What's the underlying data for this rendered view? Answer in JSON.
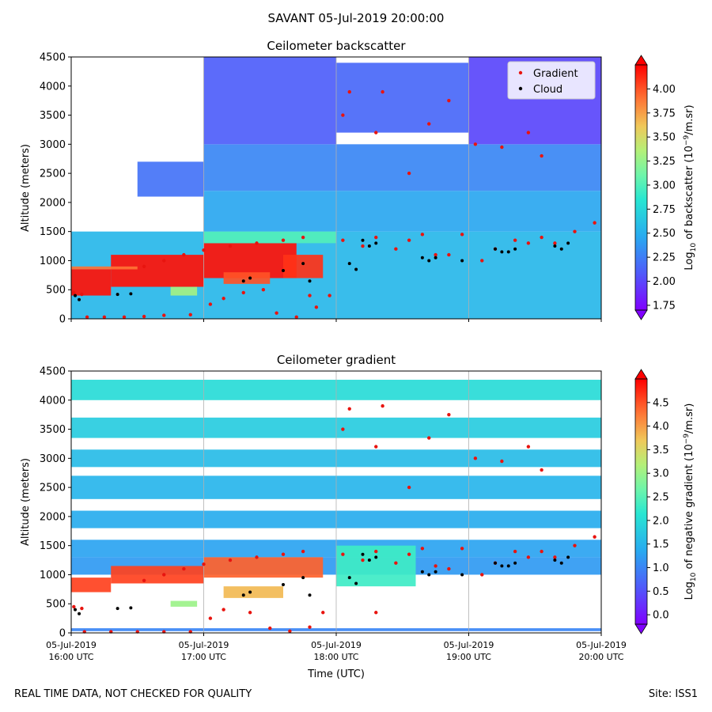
{
  "suptitle": "SAVANT 05-Jul-2019 20:00:00",
  "footer": {
    "left": "REAL TIME DATA, NOT CHECKED FOR QUALITY",
    "right": "Site: ISS1"
  },
  "chart_data": [
    {
      "type": "heatmap",
      "title": "Ceilometer backscatter",
      "ylabel": "Altitude (meters)",
      "xlabel": "",
      "ylim": [
        0,
        4500
      ],
      "xlim_hours_utc": [
        16,
        20
      ],
      "yticks": [
        "0",
        "500",
        "1000",
        "1500",
        "2000",
        "2500",
        "3000",
        "3500",
        "4000",
        "4500"
      ],
      "xticks": [
        {
          "line1": "05-Jul-2019",
          "line2": "16:00 UTC"
        },
        {
          "line1": "05-Jul-2019",
          "line2": "17:00 UTC"
        },
        {
          "line1": "05-Jul-2019",
          "line2": "18:00 UTC"
        },
        {
          "line1": "05-Jul-2019",
          "line2": "19:00 UTC"
        },
        {
          "line1": "05-Jul-2019",
          "line2": "20:00 UTC"
        }
      ],
      "show_xtick_labels": false,
      "colorbar": {
        "label_main": "Log",
        "label_sub": "10",
        "label_mid": " of backscatter (10",
        "label_sup": "−9",
        "label_end": "/m.sr)",
        "range": [
          1.7,
          4.25
        ],
        "ticks": [
          "1.75",
          "2.00",
          "2.25",
          "2.50",
          "2.75",
          "3.00",
          "3.25",
          "3.50",
          "3.75",
          "4.00"
        ]
      },
      "legend": {
        "position": "top-right",
        "entries": [
          {
            "label": "Gradient",
            "color": "#e8140f"
          },
          {
            "label": "Cloud",
            "color": "#000000"
          }
        ]
      },
      "layers": [
        {
          "t0": 16.0,
          "t1": 20.0,
          "alt0": 0,
          "alt1": 1500,
          "value": 2.55
        },
        {
          "t0": 17.0,
          "t1": 20.0,
          "alt0": 1500,
          "alt1": 2200,
          "value": 2.45
        },
        {
          "t0": 17.0,
          "t1": 20.0,
          "alt0": 2200,
          "alt1": 3000,
          "value": 2.3
        },
        {
          "t0": 17.0,
          "t1": 18.0,
          "alt0": 3000,
          "alt1": 4500,
          "value": 2.1
        },
        {
          "t0": 16.5,
          "t1": 17.0,
          "alt0": 2100,
          "alt1": 2700,
          "value": 2.2
        },
        {
          "t0": 18.0,
          "t1": 19.0,
          "alt0": 3200,
          "alt1": 4400,
          "value": 2.15
        },
        {
          "t0": 19.0,
          "t1": 20.0,
          "alt0": 3000,
          "alt1": 4500,
          "value": 2.0
        },
        {
          "t0": 16.0,
          "t1": 16.3,
          "alt0": 400,
          "alt1": 850,
          "value": 4.2
        },
        {
          "t0": 16.3,
          "t1": 17.0,
          "alt0": 550,
          "alt1": 1100,
          "value": 4.2
        },
        {
          "t0": 17.0,
          "t1": 17.7,
          "alt0": 700,
          "alt1": 1300,
          "value": 4.2
        },
        {
          "t0": 16.0,
          "t1": 16.5,
          "alt0": 850,
          "alt1": 900,
          "value": 3.9
        },
        {
          "t0": 17.15,
          "t1": 17.5,
          "alt0": 600,
          "alt1": 800,
          "value": 4.0
        },
        {
          "t0": 17.6,
          "t1": 17.9,
          "alt0": 700,
          "alt1": 1100,
          "value": 4.1
        },
        {
          "t0": 17.0,
          "t1": 18.0,
          "alt0": 1300,
          "alt1": 1500,
          "value": 3.0
        },
        {
          "t0": 16.75,
          "t1": 16.95,
          "alt0": 400,
          "alt1": 550,
          "value": 3.3
        }
      ],
      "gradient_points": [
        {
          "t": 16.02,
          "alt": 450
        },
        {
          "t": 16.08,
          "alt": 420
        },
        {
          "t": 16.12,
          "alt": 30
        },
        {
          "t": 16.25,
          "alt": 30
        },
        {
          "t": 16.4,
          "alt": 30
        },
        {
          "t": 16.55,
          "alt": 40
        },
        {
          "t": 16.7,
          "alt": 60
        },
        {
          "t": 16.9,
          "alt": 70
        },
        {
          "t": 17.05,
          "alt": 250
        },
        {
          "t": 17.15,
          "alt": 350
        },
        {
          "t": 17.3,
          "alt": 450
        },
        {
          "t": 17.45,
          "alt": 500
        },
        {
          "t": 17.55,
          "alt": 100
        },
        {
          "t": 17.7,
          "alt": 30
        },
        {
          "t": 17.8,
          "alt": 400
        },
        {
          "t": 17.85,
          "alt": 200
        },
        {
          "t": 17.95,
          "alt": 400
        },
        {
          "t": 18.05,
          "alt": 1350
        },
        {
          "t": 18.2,
          "alt": 1250
        },
        {
          "t": 18.3,
          "alt": 1400
        },
        {
          "t": 18.45,
          "alt": 1200
        },
        {
          "t": 18.55,
          "alt": 1350
        },
        {
          "t": 18.65,
          "alt": 1450
        },
        {
          "t": 18.75,
          "alt": 1100
        },
        {
          "t": 18.85,
          "alt": 1100
        },
        {
          "t": 18.95,
          "alt": 1450
        },
        {
          "t": 19.1,
          "alt": 1000
        },
        {
          "t": 19.2,
          "alt": 1200
        },
        {
          "t": 19.35,
          "alt": 1350
        },
        {
          "t": 19.45,
          "alt": 1300
        },
        {
          "t": 19.55,
          "alt": 1400
        },
        {
          "t": 19.65,
          "alt": 1300
        },
        {
          "t": 19.8,
          "alt": 1500
        },
        {
          "t": 19.95,
          "alt": 1650
        },
        {
          "t": 18.05,
          "alt": 3500
        },
        {
          "t": 18.1,
          "alt": 3900
        },
        {
          "t": 18.3,
          "alt": 3200
        },
        {
          "t": 18.35,
          "alt": 3900
        },
        {
          "t": 18.55,
          "alt": 2500
        },
        {
          "t": 18.7,
          "alt": 3350
        },
        {
          "t": 18.85,
          "alt": 3750
        },
        {
          "t": 19.05,
          "alt": 3000
        },
        {
          "t": 19.25,
          "alt": 2950
        },
        {
          "t": 19.45,
          "alt": 3200
        },
        {
          "t": 19.55,
          "alt": 2800
        },
        {
          "t": 16.55,
          "alt": 900
        },
        {
          "t": 16.7,
          "alt": 1000
        },
        {
          "t": 16.85,
          "alt": 1100
        },
        {
          "t": 17.0,
          "alt": 1180
        },
        {
          "t": 17.2,
          "alt": 1250
        },
        {
          "t": 17.4,
          "alt": 1300
        },
        {
          "t": 17.6,
          "alt": 1350
        },
        {
          "t": 17.75,
          "alt": 1400
        }
      ],
      "cloud_points": [
        {
          "t": 16.03,
          "alt": 400
        },
        {
          "t": 16.06,
          "alt": 330
        },
        {
          "t": 16.35,
          "alt": 420
        },
        {
          "t": 16.45,
          "alt": 430
        },
        {
          "t": 17.3,
          "alt": 650
        },
        {
          "t": 17.35,
          "alt": 700
        },
        {
          "t": 17.6,
          "alt": 830
        },
        {
          "t": 17.75,
          "alt": 950
        },
        {
          "t": 17.8,
          "alt": 650
        },
        {
          "t": 18.1,
          "alt": 950
        },
        {
          "t": 18.15,
          "alt": 850
        },
        {
          "t": 18.2,
          "alt": 1350
        },
        {
          "t": 18.25,
          "alt": 1250
        },
        {
          "t": 18.3,
          "alt": 1300
        },
        {
          "t": 18.65,
          "alt": 1050
        },
        {
          "t": 18.7,
          "alt": 1000
        },
        {
          "t": 18.75,
          "alt": 1050
        },
        {
          "t": 18.95,
          "alt": 1000
        },
        {
          "t": 19.2,
          "alt": 1200
        },
        {
          "t": 19.25,
          "alt": 1150
        },
        {
          "t": 19.3,
          "alt": 1150
        },
        {
          "t": 19.35,
          "alt": 1200
        },
        {
          "t": 19.65,
          "alt": 1250
        },
        {
          "t": 19.7,
          "alt": 1200
        },
        {
          "t": 19.75,
          "alt": 1300
        }
      ]
    },
    {
      "type": "heatmap",
      "title": "Ceilometer gradient",
      "ylabel": "Altitude (meters)",
      "xlabel": "Time (UTC)",
      "ylim": [
        0,
        4500
      ],
      "xlim_hours_utc": [
        16,
        20
      ],
      "yticks": [
        "0",
        "500",
        "1000",
        "1500",
        "2000",
        "2500",
        "3000",
        "3500",
        "4000",
        "4500"
      ],
      "xticks": [
        {
          "line1": "05-Jul-2019",
          "line2": "16:00 UTC"
        },
        {
          "line1": "05-Jul-2019",
          "line2": "17:00 UTC"
        },
        {
          "line1": "05-Jul-2019",
          "line2": "18:00 UTC"
        },
        {
          "line1": "05-Jul-2019",
          "line2": "19:00 UTC"
        },
        {
          "line1": "05-Jul-2019",
          "line2": "20:00 UTC"
        }
      ],
      "show_xtick_labels": true,
      "colorbar": {
        "label_main": "Log",
        "label_sub": "10",
        "label_mid": " of negative gradient (10",
        "label_sup": "−9",
        "label_end": "/m.sr)",
        "range": [
          -0.2,
          5.0
        ],
        "ticks": [
          "0.0",
          "0.5",
          "1.0",
          "1.5",
          "2.0",
          "2.5",
          "3.0",
          "3.5",
          "4.0",
          "4.5"
        ]
      },
      "layers": [
        {
          "t0": 16.0,
          "t1": 20.0,
          "alt0": 4000,
          "alt1": 4350,
          "value": 2.0
        },
        {
          "t0": 16.0,
          "t1": 20.0,
          "alt0": 3350,
          "alt1": 3700,
          "value": 1.8
        },
        {
          "t0": 16.0,
          "t1": 20.0,
          "alt0": 2850,
          "alt1": 3150,
          "value": 1.6
        },
        {
          "t0": 16.0,
          "t1": 20.0,
          "alt0": 2300,
          "alt1": 2700,
          "value": 1.5
        },
        {
          "t0": 16.0,
          "t1": 20.0,
          "alt0": 1800,
          "alt1": 2100,
          "value": 1.4
        },
        {
          "t0": 16.0,
          "t1": 20.0,
          "alt0": 1300,
          "alt1": 1600,
          "value": 1.3
        },
        {
          "t0": 16.0,
          "t1": 20.0,
          "alt0": 1000,
          "alt1": 1300,
          "value": 1.2
        },
        {
          "t0": 16.0,
          "t1": 20.0,
          "alt0": 30,
          "alt1": 80,
          "value": 1.0
        },
        {
          "t0": 16.0,
          "t1": 16.3,
          "alt0": 700,
          "alt1": 950,
          "value": 4.6
        },
        {
          "t0": 16.3,
          "t1": 17.0,
          "alt0": 850,
          "alt1": 1150,
          "value": 4.6
        },
        {
          "t0": 17.0,
          "t1": 17.9,
          "alt0": 950,
          "alt1": 1300,
          "value": 4.4
        },
        {
          "t0": 17.15,
          "t1": 17.6,
          "alt0": 600,
          "alt1": 800,
          "value": 3.8
        },
        {
          "t0": 16.75,
          "t1": 16.95,
          "alt0": 450,
          "alt1": 550,
          "value": 3.0
        },
        {
          "t0": 18.0,
          "t1": 18.6,
          "alt0": 800,
          "alt1": 1500,
          "value": 2.3
        }
      ],
      "gradient_points": [
        {
          "t": 16.02,
          "alt": 450
        },
        {
          "t": 16.08,
          "alt": 420
        },
        {
          "t": 16.1,
          "alt": 20
        },
        {
          "t": 16.3,
          "alt": 20
        },
        {
          "t": 16.5,
          "alt": 20
        },
        {
          "t": 16.7,
          "alt": 20
        },
        {
          "t": 16.9,
          "alt": 20
        },
        {
          "t": 17.05,
          "alt": 250
        },
        {
          "t": 17.15,
          "alt": 400
        },
        {
          "t": 17.35,
          "alt": 350
        },
        {
          "t": 17.5,
          "alt": 80
        },
        {
          "t": 17.65,
          "alt": 30
        },
        {
          "t": 17.8,
          "alt": 100
        },
        {
          "t": 17.9,
          "alt": 350
        },
        {
          "t": 18.3,
          "alt": 350
        },
        {
          "t": 18.05,
          "alt": 1350
        },
        {
          "t": 18.2,
          "alt": 1250
        },
        {
          "t": 18.3,
          "alt": 1400
        },
        {
          "t": 18.45,
          "alt": 1200
        },
        {
          "t": 18.55,
          "alt": 1350
        },
        {
          "t": 18.65,
          "alt": 1450
        },
        {
          "t": 18.75,
          "alt": 1150
        },
        {
          "t": 18.85,
          "alt": 1100
        },
        {
          "t": 18.95,
          "alt": 1450
        },
        {
          "t": 19.1,
          "alt": 1000
        },
        {
          "t": 19.2,
          "alt": 1200
        },
        {
          "t": 19.35,
          "alt": 1400
        },
        {
          "t": 19.45,
          "alt": 1300
        },
        {
          "t": 19.55,
          "alt": 1400
        },
        {
          "t": 19.65,
          "alt": 1300
        },
        {
          "t": 19.8,
          "alt": 1500
        },
        {
          "t": 19.95,
          "alt": 1650
        },
        {
          "t": 18.05,
          "alt": 3500
        },
        {
          "t": 18.1,
          "alt": 3850
        },
        {
          "t": 18.3,
          "alt": 3200
        },
        {
          "t": 18.35,
          "alt": 3900
        },
        {
          "t": 18.55,
          "alt": 2500
        },
        {
          "t": 18.7,
          "alt": 3350
        },
        {
          "t": 18.85,
          "alt": 3750
        },
        {
          "t": 19.05,
          "alt": 3000
        },
        {
          "t": 19.25,
          "alt": 2950
        },
        {
          "t": 19.45,
          "alt": 3200
        },
        {
          "t": 19.55,
          "alt": 2800
        },
        {
          "t": 16.55,
          "alt": 900
        },
        {
          "t": 16.7,
          "alt": 1000
        },
        {
          "t": 16.85,
          "alt": 1100
        },
        {
          "t": 17.0,
          "alt": 1180
        },
        {
          "t": 17.2,
          "alt": 1250
        },
        {
          "t": 17.4,
          "alt": 1300
        },
        {
          "t": 17.6,
          "alt": 1350
        },
        {
          "t": 17.75,
          "alt": 1400
        }
      ],
      "cloud_points": [
        {
          "t": 16.03,
          "alt": 400
        },
        {
          "t": 16.06,
          "alt": 330
        },
        {
          "t": 16.35,
          "alt": 420
        },
        {
          "t": 16.45,
          "alt": 430
        },
        {
          "t": 17.3,
          "alt": 650
        },
        {
          "t": 17.35,
          "alt": 700
        },
        {
          "t": 17.6,
          "alt": 830
        },
        {
          "t": 17.75,
          "alt": 950
        },
        {
          "t": 17.8,
          "alt": 650
        },
        {
          "t": 18.1,
          "alt": 950
        },
        {
          "t": 18.15,
          "alt": 850
        },
        {
          "t": 18.2,
          "alt": 1350
        },
        {
          "t": 18.25,
          "alt": 1250
        },
        {
          "t": 18.3,
          "alt": 1300
        },
        {
          "t": 18.65,
          "alt": 1050
        },
        {
          "t": 18.7,
          "alt": 1000
        },
        {
          "t": 18.75,
          "alt": 1050
        },
        {
          "t": 18.95,
          "alt": 1000
        },
        {
          "t": 19.2,
          "alt": 1200
        },
        {
          "t": 19.25,
          "alt": 1150
        },
        {
          "t": 19.3,
          "alt": 1150
        },
        {
          "t": 19.35,
          "alt": 1200
        },
        {
          "t": 19.65,
          "alt": 1250
        },
        {
          "t": 19.7,
          "alt": 1200
        },
        {
          "t": 19.75,
          "alt": 1300
        }
      ]
    }
  ]
}
